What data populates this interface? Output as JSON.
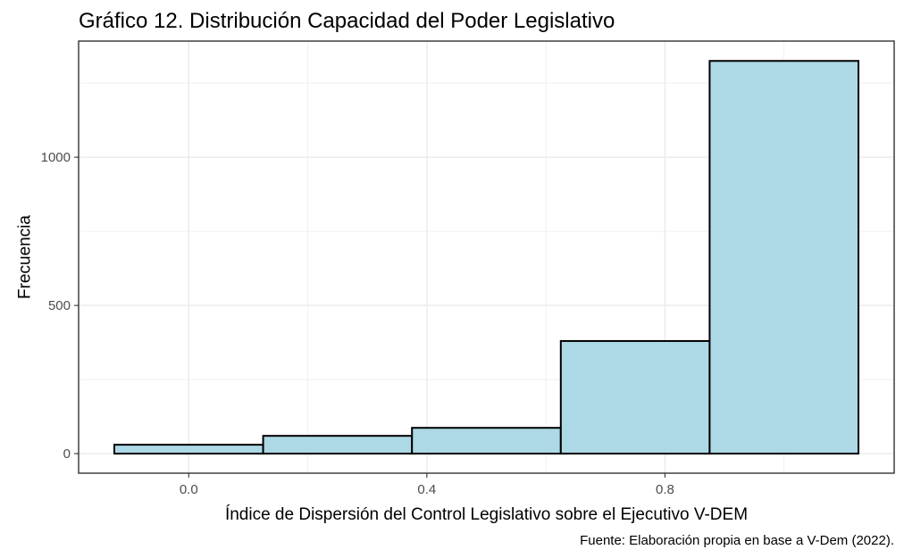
{
  "chart_data": {
    "type": "bar",
    "title": "Gráfico 12. Distribución Capacidad del Poder Legislativo",
    "xlabel": "Índice de Dispersión del Control Legislativo sobre el Ejecutivo V-DEM",
    "ylabel": "Frecuencia",
    "caption": "Fuente: Elaboración propia en base a V-Dem (2022).",
    "bins": [
      {
        "x0": -0.125,
        "x1": 0.125,
        "value": 30
      },
      {
        "x0": 0.125,
        "x1": 0.375,
        "value": 60
      },
      {
        "x0": 0.375,
        "x1": 0.625,
        "value": 87
      },
      {
        "x0": 0.625,
        "x1": 0.875,
        "value": 380
      },
      {
        "x0": 0.875,
        "x1": 1.125,
        "value": 1325
      }
    ],
    "xlim": [
      -0.185,
      1.185
    ],
    "ylim": [
      -66,
      1392
    ],
    "x_ticks": [
      0.0,
      0.4,
      0.8
    ],
    "x_tick_labels": [
      "0.0",
      "0.4",
      "0.8"
    ],
    "y_ticks": [
      0,
      500,
      1000
    ],
    "y_tick_labels": [
      "0",
      "500",
      "1000"
    ],
    "grid": true,
    "legend": "none",
    "bar_fill": "#add8e6",
    "bar_stroke": "#000000",
    "grid_color": "#ebebeb",
    "panel_border_color": "#333333"
  }
}
